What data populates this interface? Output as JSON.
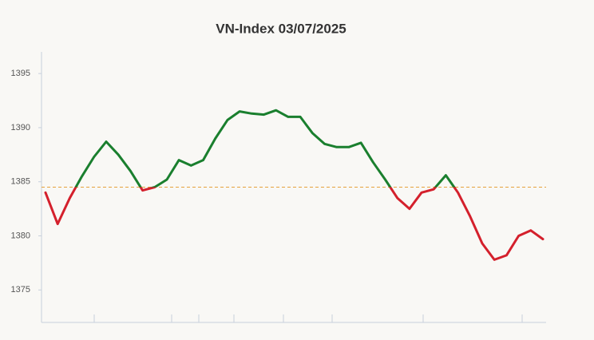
{
  "chart_data": {
    "type": "line",
    "title": "VN-Index 03/07/2025",
    "values": [
      1384,
      1381.1,
      1383.5,
      1385.5,
      1387.3,
      1388.7,
      1387.5,
      1386,
      1384.2,
      1384.5,
      1385.2,
      1387,
      1386.5,
      1387,
      1389,
      1390.7,
      1391.5,
      1391.3,
      1391.2,
      1391.6,
      1391,
      1391,
      1389.5,
      1388.5,
      1388.2,
      1388.2,
      1388.6,
      1386.8,
      1385.2,
      1383.5,
      1382.5,
      1384,
      1384.3,
      1385.6,
      1384,
      1381.8,
      1379.3,
      1377.8,
      1378.2,
      1380,
      1380.5,
      1379.7
    ],
    "ylim": [
      1372,
      1397
    ],
    "yticks": [
      1375,
      1380,
      1385,
      1390,
      1395
    ],
    "reference": 1384.5,
    "reference_color": "#e6a23c",
    "up_color": "#1a7f2e",
    "down_color": "#d4202c"
  }
}
